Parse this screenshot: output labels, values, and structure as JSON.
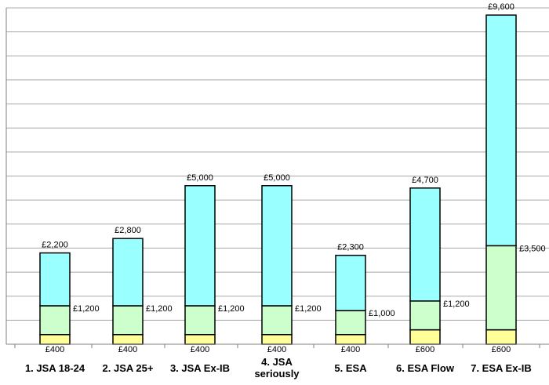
{
  "chart_data": {
    "type": "bar",
    "stacked": true,
    "categories": [
      "1. JSA 18-24",
      "2. JSA 25+",
      "3. JSA Ex-IB",
      "4. JSA seriously",
      "5. ESA",
      "6. ESA Flow",
      "7. ESA Ex-IB"
    ],
    "series": [
      {
        "values": [
          400,
          400,
          400,
          400,
          400,
          600,
          600
        ],
        "color": "#ffff99"
      },
      {
        "values": [
          1200,
          1200,
          1200,
          1200,
          1000,
          1200,
          3500
        ],
        "color": "#ccffcc"
      },
      {
        "values": [
          2200,
          2800,
          5000,
          5000,
          2300,
          4700,
          9600
        ],
        "color": "#99ffff"
      }
    ],
    "data_labels": {
      "bottom": [
        "£400",
        "£400",
        "£400",
        "£400",
        "£400",
        "£600",
        "£600"
      ],
      "middle": [
        "£1,200",
        "£1,200",
        "£1,200",
        "£1,200",
        "£1,000",
        "£1,200",
        "£3,500"
      ],
      "top": [
        "£2,200",
        "£2,800",
        "£5,000",
        "£5,000",
        "£2,300",
        "£4,700",
        "£9,600"
      ]
    },
    "ylim": [
      0,
      14000
    ],
    "grid": true,
    "xlabel": "",
    "ylabel": "",
    "title": ""
  }
}
